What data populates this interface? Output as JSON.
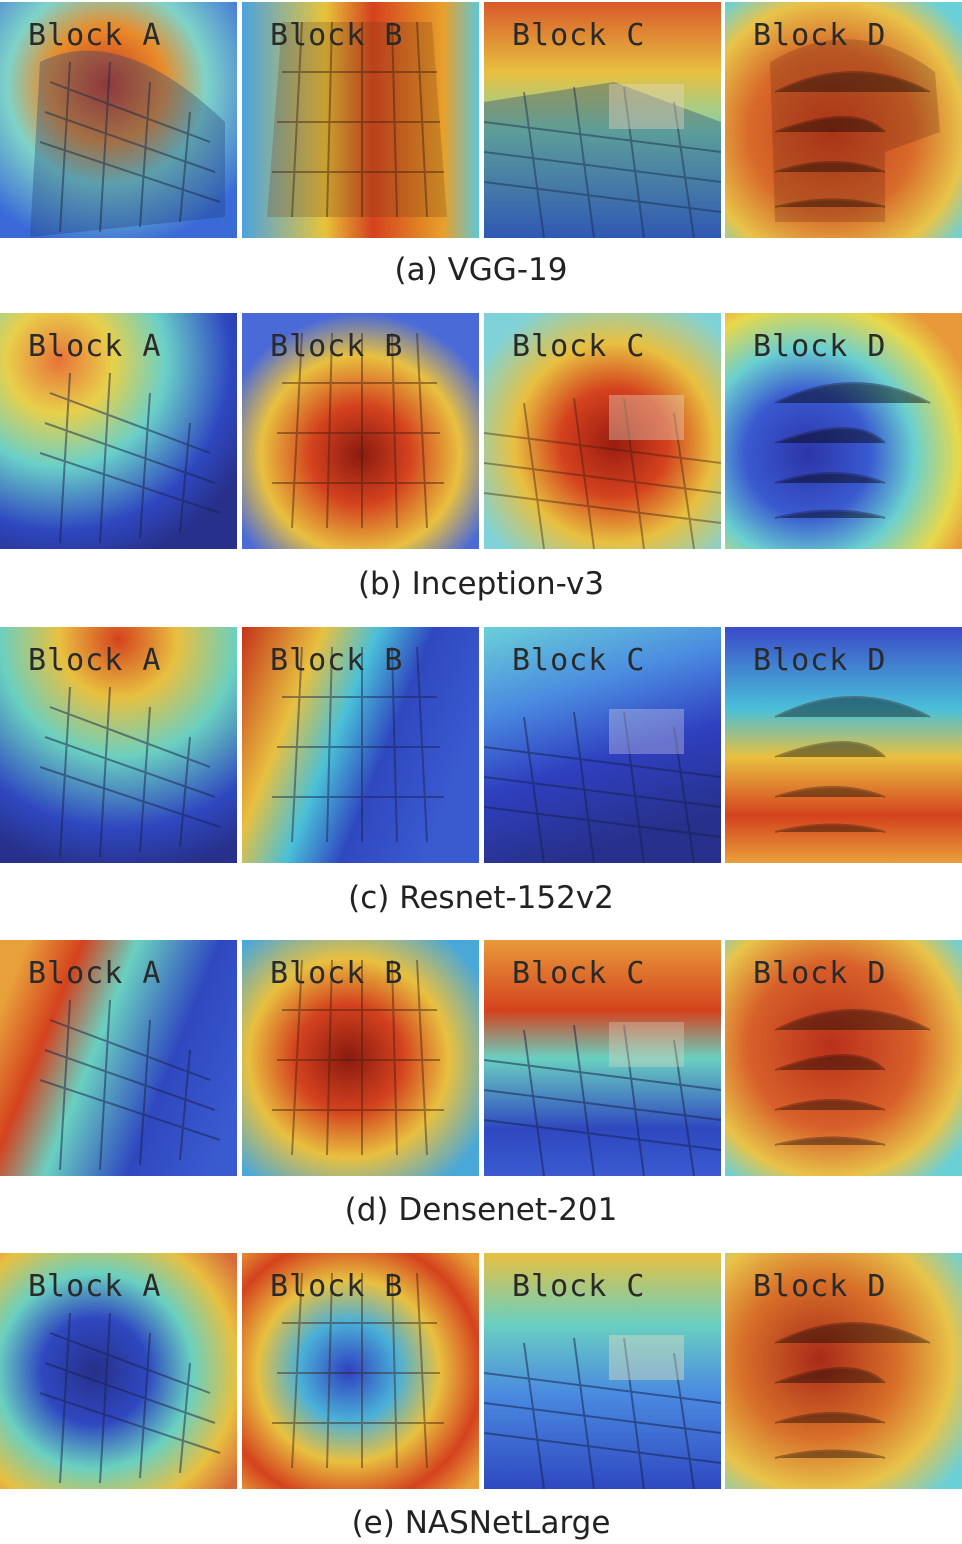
{
  "rows": [
    {
      "caption": "(a) VGG-19",
      "labels": [
        "Block A",
        "Block B",
        "Block C",
        "Block D"
      ]
    },
    {
      "caption": "(b) Inception-v3",
      "labels": [
        "Block A",
        "Block B",
        "Block C",
        "Block D"
      ]
    },
    {
      "caption": "(c) Resnet-152v2",
      "labels": [
        "Block A",
        "Block B",
        "Block C",
        "Block D"
      ]
    },
    {
      "caption": "(d) Densenet-201",
      "labels": [
        "Block A",
        "Block B",
        "Block C",
        "Block D"
      ]
    },
    {
      "caption": "(e) NASNetLarge",
      "labels": [
        "Block A",
        "Block B",
        "Block C",
        "Block D"
      ]
    }
  ],
  "colors": {
    "hot": "#d4321e",
    "warm": "#f5a623",
    "mid": "#e8e24a",
    "cool": "#4fc3e8",
    "cold": "#2e3fb8"
  }
}
